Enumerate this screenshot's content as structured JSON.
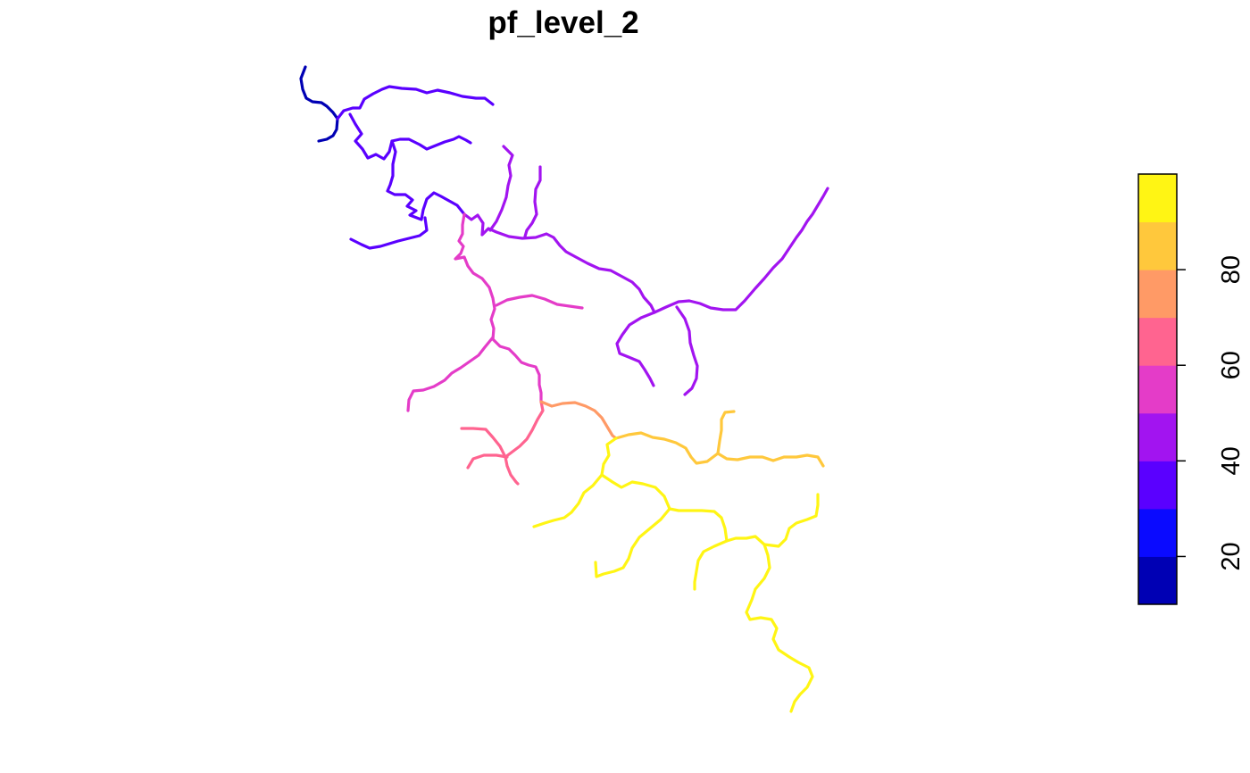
{
  "title": "pf_level_2",
  "legend": {
    "bins": [
      {
        "from": 10,
        "to": 20,
        "color": "#0000B4"
      },
      {
        "from": 20,
        "to": 30,
        "color": "#0A0AFF"
      },
      {
        "from": 30,
        "to": 40,
        "color": "#5A00FF"
      },
      {
        "from": 40,
        "to": 50,
        "color": "#A214F0"
      },
      {
        "from": 50,
        "to": 60,
        "color": "#E43CC8"
      },
      {
        "from": 60,
        "to": 70,
        "color": "#FF6490"
      },
      {
        "from": 70,
        "to": 80,
        "color": "#FF9A66"
      },
      {
        "from": 80,
        "to": 90,
        "color": "#FFC83C"
      },
      {
        "from": 90,
        "to": 100,
        "color": "#FFF514"
      }
    ],
    "ticks": [
      {
        "value": 20,
        "label": "20"
      },
      {
        "value": 40,
        "label": "40"
      },
      {
        "value": 60,
        "label": "60"
      },
      {
        "value": 80,
        "label": "80"
      }
    ]
  },
  "river_classes": {
    "c15": "#0000B4",
    "c35": "#5A00FF",
    "c45": "#A214F0",
    "c55": "#E43CC8",
    "c65": "#FF6490",
    "c75": "#FF9A66",
    "c85": "#FFC83C",
    "c95": "#FFF514"
  }
}
